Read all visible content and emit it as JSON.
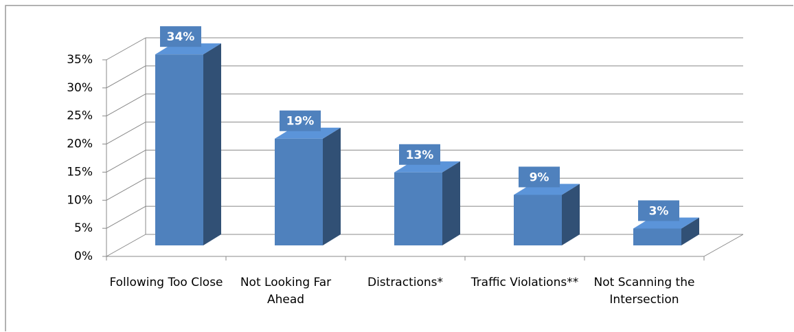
{
  "chart_data": {
    "type": "bar3d",
    "categories": [
      "Following Too Close",
      "Not Looking Far Ahead",
      "Distractions*",
      "Traffic Violations**",
      "Not Scanning the Intersection"
    ],
    "values": [
      34,
      19,
      13,
      9,
      3
    ],
    "value_labels": [
      "34%",
      "19%",
      "13%",
      "9%",
      "3%"
    ],
    "color": "#4f81bd",
    "ylim": [
      0,
      35
    ],
    "yticks": [
      {
        "value": 0,
        "label": "0%"
      },
      {
        "value": 5,
        "label": "5%"
      },
      {
        "value": 10,
        "label": "10%"
      },
      {
        "value": 15,
        "label": "15%"
      },
      {
        "value": 20,
        "label": "20%"
      },
      {
        "value": 25,
        "label": "25%"
      },
      {
        "value": 30,
        "label": "30%"
      },
      {
        "value": 35,
        "label": "35%"
      }
    ],
    "grid": true
  }
}
